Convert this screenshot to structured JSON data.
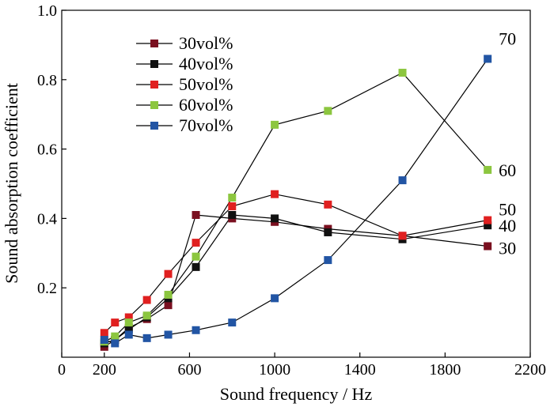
{
  "chart_data": {
    "type": "line",
    "title": "",
    "xlabel": "Sound frequency / Hz",
    "ylabel": "Sound absorption coefficient",
    "xlim": [
      0,
      2200
    ],
    "ylim": [
      0,
      1.0
    ],
    "xticks": [
      0,
      200,
      600,
      1000,
      1400,
      1800,
      2200
    ],
    "xtick_labels": [
      "0",
      "200",
      "600",
      "1000",
      "1400",
      "1800",
      "2200"
    ],
    "yticks": [
      0.2,
      0.4,
      0.6,
      0.8,
      1.0
    ],
    "ytick_labels": [
      "0.2",
      "0.4",
      "0.6",
      "0.8",
      "1.0"
    ],
    "grid": false,
    "legend_position": "upper-left",
    "x": [
      200,
      250,
      315,
      400,
      500,
      630,
      800,
      1000,
      1250,
      1600,
      2000
    ],
    "series": [
      {
        "name": "30vol%",
        "color": "#7a1020",
        "end_label": "30",
        "values": [
          0.03,
          0.05,
          0.085,
          0.11,
          0.15,
          0.41,
          0.4,
          0.39,
          0.37,
          0.35,
          0.32
        ]
      },
      {
        "name": "40vol%",
        "color": "#111111",
        "end_label": "40",
        "values": [
          0.04,
          0.05,
          0.08,
          0.115,
          0.17,
          0.26,
          0.41,
          0.4,
          0.36,
          0.34,
          0.38
        ]
      },
      {
        "name": "50vol%",
        "color": "#e02020",
        "end_label": "50",
        "values": [
          0.07,
          0.1,
          0.115,
          0.165,
          0.24,
          0.33,
          0.435,
          0.47,
          0.44,
          0.35,
          0.395
        ]
      },
      {
        "name": "60vol%",
        "color": "#8cc63f",
        "end_label": "60",
        "values": [
          0.045,
          0.06,
          0.1,
          0.12,
          0.18,
          0.29,
          0.46,
          0.67,
          0.71,
          0.82,
          0.54
        ]
      },
      {
        "name": "70vol%",
        "color": "#2255a4",
        "end_label": "70",
        "values": [
          0.05,
          0.04,
          0.065,
          0.055,
          0.065,
          0.078,
          0.1,
          0.17,
          0.28,
          0.51,
          0.86
        ]
      }
    ]
  }
}
